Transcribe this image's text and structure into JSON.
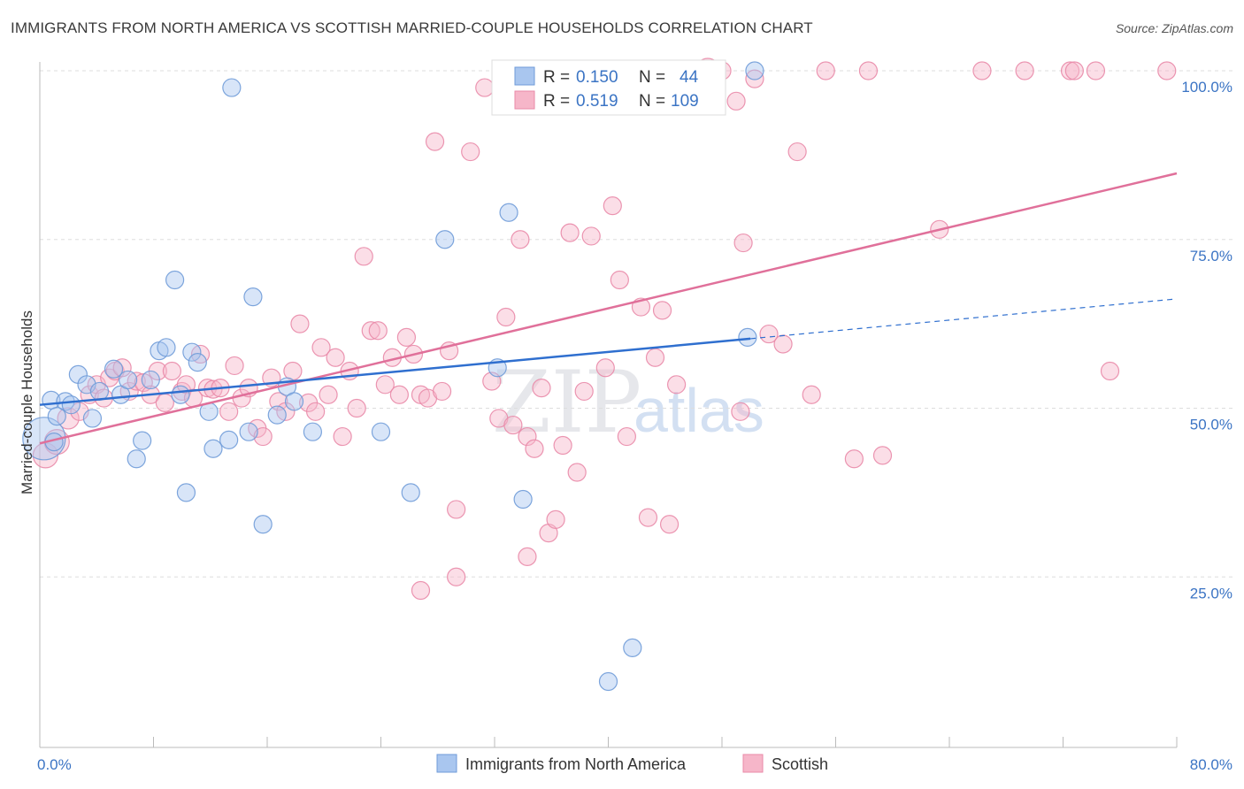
{
  "title": "IMMIGRANTS FROM NORTH AMERICA VS SCOTTISH MARRIED-COUPLE HOUSEHOLDS CORRELATION CHART",
  "source": "Source: ZipAtlas.com",
  "watermark": {
    "zip": "ZIP",
    "atlas": "atlas"
  },
  "colors": {
    "blue_fill": "#a9c6ef",
    "blue_stroke": "#6f9bd8",
    "blue_line": "#2f6fcf",
    "pink_fill": "#f6b6c9",
    "pink_stroke": "#e98aa8",
    "pink_line": "#e0709a",
    "tick": "#3b74c4",
    "grid": "#dddddd"
  },
  "legend": {
    "rows": [
      {
        "r_label": "R = ",
        "r_value": "0.150",
        "n_label": "N = ",
        "n_value": "44"
      },
      {
        "r_label": "R = ",
        "r_value": "0.519",
        "n_label": "N = ",
        "n_value": "109"
      }
    ]
  },
  "chart_data": {
    "type": "scatter",
    "xlabel": "",
    "ylabel": "Married-couple Households",
    "xlim": [
      0,
      80
    ],
    "ylim": [
      0,
      102
    ],
    "x_tick_labels": [
      "0.0%",
      "80.0%"
    ],
    "y_ticks": [
      25,
      50,
      75,
      100
    ],
    "y_tick_labels": [
      "25.0%",
      "50.0%",
      "75.0%",
      "100.0%"
    ],
    "grid": true,
    "series": [
      {
        "name": "Immigrants from North America",
        "R": 0.15,
        "N": 44,
        "trend": {
          "x0": 0,
          "y0": 50.5,
          "x1": 50,
          "y1": 60.3,
          "dash_x1": 80,
          "dash_y1": 66.2
        },
        "points": [
          [
            0.3,
            45.5,
            24
          ],
          [
            0.8,
            51.2,
            10
          ],
          [
            1.2,
            48.8,
            10
          ],
          [
            1.8,
            51.0,
            10
          ],
          [
            2.2,
            50.5,
            10
          ],
          [
            2.7,
            55.0,
            10
          ],
          [
            3.3,
            53.5,
            10
          ],
          [
            3.7,
            48.5,
            10
          ],
          [
            4.2,
            52.5,
            10
          ],
          [
            5.2,
            55.8,
            10
          ],
          [
            5.7,
            52.0,
            10
          ],
          [
            6.2,
            54.2,
            10
          ],
          [
            6.8,
            42.5,
            10
          ],
          [
            7.2,
            45.2,
            10
          ],
          [
            7.8,
            54.2,
            10
          ],
          [
            8.4,
            58.5,
            10
          ],
          [
            8.9,
            59.0,
            10
          ],
          [
            9.5,
            69.0,
            10
          ],
          [
            9.9,
            52.0,
            10
          ],
          [
            10.3,
            37.5,
            10
          ],
          [
            10.7,
            58.3,
            10
          ],
          [
            11.1,
            56.8,
            10
          ],
          [
            11.9,
            49.5,
            10
          ],
          [
            12.2,
            44.0,
            10
          ],
          [
            13.3,
            45.3,
            10
          ],
          [
            13.5,
            97.5,
            10
          ],
          [
            14.7,
            46.5,
            10
          ],
          [
            15.0,
            66.5,
            10
          ],
          [
            15.7,
            32.8,
            10
          ],
          [
            16.7,
            49.0,
            10
          ],
          [
            17.4,
            53.2,
            10
          ],
          [
            17.9,
            51.0,
            10
          ],
          [
            19.2,
            46.5,
            10
          ],
          [
            24.0,
            46.5,
            10
          ],
          [
            26.1,
            37.5,
            10
          ],
          [
            28.5,
            75.0,
            10
          ],
          [
            32.2,
            56.0,
            10
          ],
          [
            33.0,
            79.0,
            10
          ],
          [
            34.0,
            36.5,
            10
          ],
          [
            40.0,
            9.5,
            10
          ],
          [
            41.7,
            14.5,
            10
          ],
          [
            50.3,
            100.0,
            10
          ],
          [
            49.8,
            60.5,
            10
          ],
          [
            1.0,
            45.0,
            10
          ]
        ]
      },
      {
        "name": "Scottish",
        "R": 0.519,
        "N": 109,
        "trend": {
          "x0": 0,
          "y0": 44.8,
          "x1": 80,
          "y1": 84.8
        },
        "points": [
          [
            0.4,
            43.0,
            14
          ],
          [
            1.2,
            45.0,
            14
          ],
          [
            2.0,
            48.5,
            12
          ],
          [
            2.8,
            49.5,
            10
          ],
          [
            3.5,
            52.0,
            10
          ],
          [
            4.0,
            53.5,
            10
          ],
          [
            4.5,
            51.5,
            10
          ],
          [
            4.9,
            54.5,
            10
          ],
          [
            5.3,
            55.5,
            10
          ],
          [
            5.8,
            56.0,
            10
          ],
          [
            6.3,
            52.5,
            10
          ],
          [
            6.8,
            54.0,
            10
          ],
          [
            7.3,
            53.8,
            10
          ],
          [
            7.8,
            52.0,
            10
          ],
          [
            8.3,
            55.5,
            10
          ],
          [
            8.8,
            50.8,
            10
          ],
          [
            9.3,
            55.5,
            10
          ],
          [
            10.0,
            52.5,
            10
          ],
          [
            10.3,
            53.5,
            10
          ],
          [
            10.8,
            51.5,
            10
          ],
          [
            11.3,
            58.0,
            10
          ],
          [
            11.8,
            53.0,
            10
          ],
          [
            12.2,
            52.8,
            10
          ],
          [
            12.7,
            53.0,
            10
          ],
          [
            13.3,
            49.5,
            10
          ],
          [
            13.7,
            56.3,
            10
          ],
          [
            14.2,
            51.5,
            10
          ],
          [
            14.7,
            53.0,
            10
          ],
          [
            15.3,
            47.0,
            10
          ],
          [
            15.7,
            45.8,
            10
          ],
          [
            16.3,
            54.5,
            10
          ],
          [
            16.8,
            51.0,
            10
          ],
          [
            17.3,
            49.5,
            10
          ],
          [
            17.8,
            55.5,
            10
          ],
          [
            18.3,
            62.5,
            10
          ],
          [
            18.9,
            50.8,
            10
          ],
          [
            19.4,
            49.5,
            10
          ],
          [
            19.8,
            59.0,
            10
          ],
          [
            20.3,
            52.0,
            10
          ],
          [
            20.8,
            57.5,
            10
          ],
          [
            21.3,
            45.8,
            10
          ],
          [
            21.8,
            55.5,
            10
          ],
          [
            22.3,
            50.0,
            10
          ],
          [
            22.8,
            72.5,
            10
          ],
          [
            23.3,
            61.5,
            10
          ],
          [
            23.8,
            61.5,
            10
          ],
          [
            24.3,
            53.5,
            10
          ],
          [
            24.8,
            57.5,
            10
          ],
          [
            25.3,
            52.0,
            10
          ],
          [
            25.8,
            60.5,
            10
          ],
          [
            26.3,
            58.0,
            10
          ],
          [
            26.8,
            52.0,
            10
          ],
          [
            27.3,
            51.5,
            10
          ],
          [
            27.8,
            89.5,
            10
          ],
          [
            28.3,
            52.5,
            10
          ],
          [
            28.8,
            58.5,
            10
          ],
          [
            29.3,
            35.0,
            10
          ],
          [
            30.3,
            88.0,
            10
          ],
          [
            31.3,
            97.5,
            10
          ],
          [
            31.8,
            54.0,
            10
          ],
          [
            32.3,
            48.5,
            10
          ],
          [
            32.8,
            63.5,
            10
          ],
          [
            33.3,
            47.5,
            10
          ],
          [
            33.8,
            75.0,
            10
          ],
          [
            34.3,
            45.8,
            10
          ],
          [
            34.8,
            44.0,
            10
          ],
          [
            35.3,
            53.0,
            10
          ],
          [
            35.8,
            31.5,
            10
          ],
          [
            36.3,
            33.5,
            10
          ],
          [
            36.8,
            44.5,
            10
          ],
          [
            37.3,
            76.0,
            10
          ],
          [
            37.8,
            40.5,
            10
          ],
          [
            38.3,
            52.5,
            10
          ],
          [
            38.8,
            75.5,
            10
          ],
          [
            39.8,
            56.0,
            10
          ],
          [
            40.3,
            80.0,
            10
          ],
          [
            40.8,
            69.0,
            10
          ],
          [
            41.3,
            45.8,
            10
          ],
          [
            42.3,
            65.0,
            10
          ],
          [
            42.8,
            33.8,
            10
          ],
          [
            43.3,
            57.5,
            10
          ],
          [
            43.8,
            64.5,
            10
          ],
          [
            44.3,
            32.8,
            10
          ],
          [
            44.8,
            53.5,
            10
          ],
          [
            47.0,
            100.0,
            14
          ],
          [
            48.0,
            100.0,
            10
          ],
          [
            49.0,
            95.5,
            10
          ],
          [
            49.5,
            74.5,
            10
          ],
          [
            49.3,
            49.5,
            10
          ],
          [
            50.3,
            98.8,
            10
          ],
          [
            51.3,
            61.0,
            10
          ],
          [
            52.3,
            59.5,
            10
          ],
          [
            53.3,
            88.0,
            10
          ],
          [
            54.3,
            52.0,
            10
          ],
          [
            55.3,
            100.0,
            10
          ],
          [
            57.3,
            42.5,
            10
          ],
          [
            58.3,
            100.0,
            10
          ],
          [
            59.3,
            43.0,
            10
          ],
          [
            63.3,
            76.5,
            10
          ],
          [
            66.3,
            100.0,
            10
          ],
          [
            69.3,
            100.0,
            10
          ],
          [
            72.5,
            100.0,
            10
          ],
          [
            72.8,
            100.0,
            10
          ],
          [
            74.3,
            100.0,
            10
          ],
          [
            75.3,
            55.5,
            10
          ],
          [
            79.3,
            100.0,
            10
          ],
          [
            26.8,
            23.0,
            10
          ],
          [
            29.3,
            25.0,
            10
          ],
          [
            34.3,
            28.0,
            10
          ]
        ]
      }
    ]
  }
}
